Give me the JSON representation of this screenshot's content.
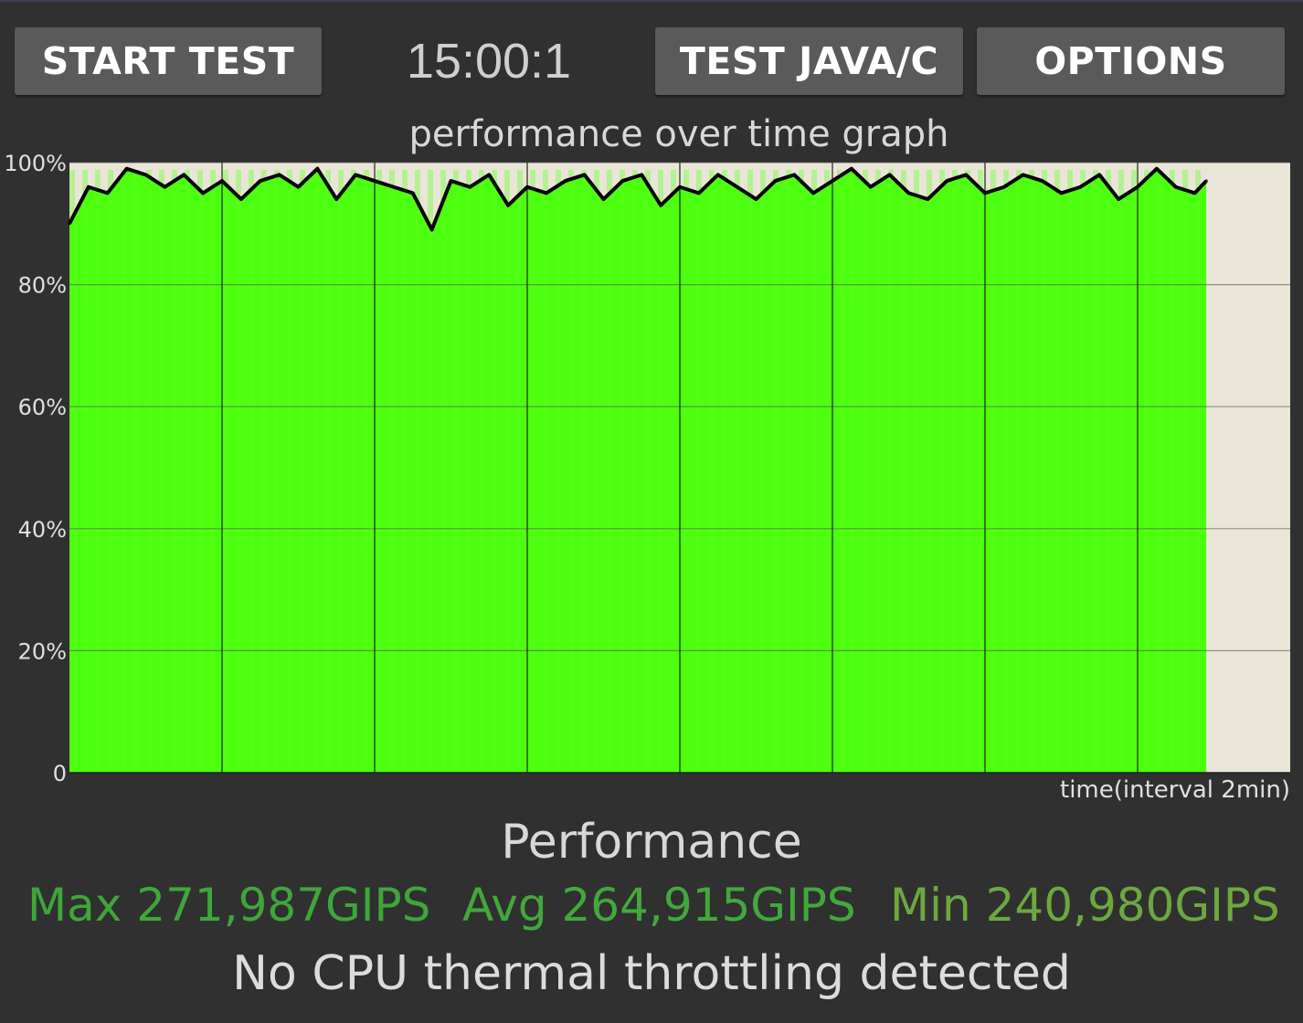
{
  "toolbar": {
    "start_label": "START TEST",
    "timer": "15:00:1",
    "java_label": "TEST JAVA/C",
    "options_label": "OPTIONS"
  },
  "chart_data": {
    "type": "area",
    "title": "performance over time graph",
    "xlabel": "time(interval 2min)",
    "ylabel": "",
    "y_ticks": [
      "0",
      "20%",
      "40%",
      "60%",
      "80%",
      "100%"
    ],
    "ylim": [
      0,
      100
    ],
    "x_range_min": [
      0,
      16
    ],
    "x_interval_min": 2,
    "grid": true,
    "fill_color": "#4cff0f",
    "line_color": "#000000",
    "background_color": "#e9e6d8",
    "series": [
      {
        "x_min": [
          0,
          0.25,
          0.5,
          0.75,
          1,
          1.25,
          1.5,
          1.75,
          2,
          2.25,
          2.5,
          2.75,
          3,
          3.25,
          3.5,
          3.75,
          4,
          4.25,
          4.5,
          4.75,
          5,
          5.25,
          5.5,
          5.75,
          6,
          6.25,
          6.5,
          6.75,
          7,
          7.25,
          7.5,
          7.75,
          8,
          8.25,
          8.5,
          8.75,
          9,
          9.25,
          9.5,
          9.75,
          10,
          10.25,
          10.5,
          10.75,
          11,
          11.25,
          11.5,
          11.75,
          12,
          12.25,
          12.5,
          12.75,
          13,
          13.25,
          13.5,
          13.75,
          14,
          14.25,
          14.5,
          14.75,
          14.9
        ],
        "values": [
          90,
          96,
          95,
          99,
          98,
          96,
          98,
          95,
          97,
          94,
          97,
          98,
          96,
          99,
          94,
          98,
          97,
          96,
          95,
          89,
          97,
          96,
          98,
          93,
          96,
          95,
          97,
          98,
          94,
          97,
          98,
          93,
          96,
          95,
          98,
          96,
          94,
          97,
          98,
          95,
          97,
          99,
          96,
          98,
          95,
          94,
          97,
          98,
          95,
          96,
          98,
          97,
          95,
          96,
          98,
          94,
          96,
          99,
          96,
          95,
          97
        ]
      }
    ],
    "extra_values_label": "",
    "legend": ""
  },
  "stats": {
    "title": "Performance",
    "max": "Max 271,987GIPS",
    "avg": "Avg 264,915GIPS",
    "min": "Min 240,980GIPS",
    "max_color": "#3fa63a",
    "avg_color": "#43a83c",
    "min_color": "#6ca83f"
  },
  "status": "No CPU thermal throttling detected"
}
